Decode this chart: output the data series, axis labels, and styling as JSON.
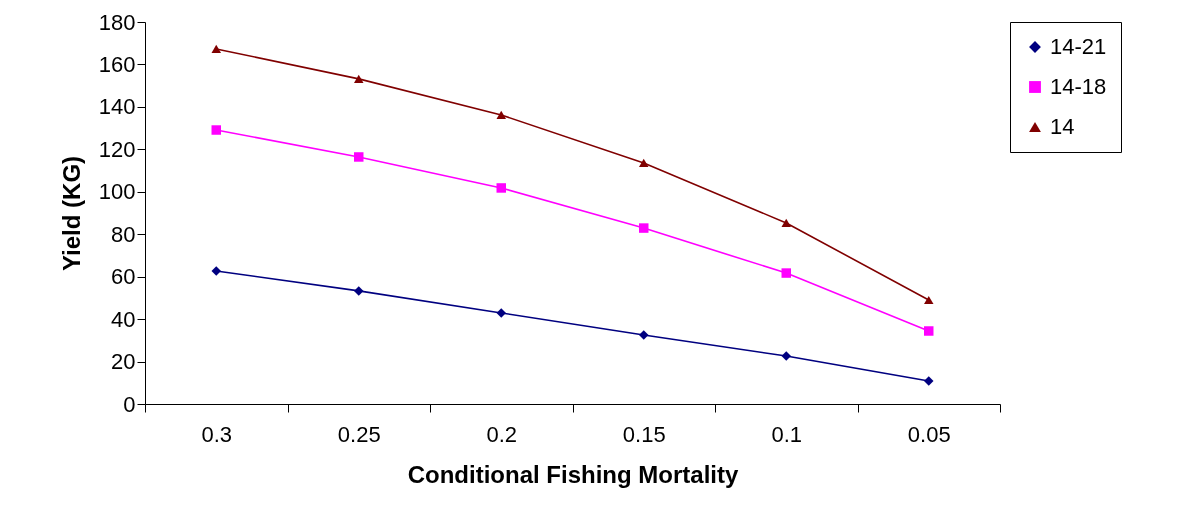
{
  "chart_data": {
    "type": "line",
    "xlabel": "Conditional Fishing Mortality",
    "ylabel": "Yield (KG)",
    "categories": [
      "0.3",
      "0.25",
      "0.2",
      "0.15",
      "0.1",
      "0.05"
    ],
    "ylim": [
      0,
      180
    ],
    "yticks": [
      0,
      20,
      40,
      60,
      80,
      100,
      120,
      140,
      160,
      180
    ],
    "grid": false,
    "legend": "right",
    "line_style": "solid",
    "series": [
      {
        "name": "14-21",
        "color": "#000080",
        "marker": "diamond",
        "values": [
          62.7,
          53.3,
          42.9,
          32.5,
          22.6,
          10.8
        ]
      },
      {
        "name": "14-18",
        "color": "#ff00ff",
        "marker": "square",
        "values": [
          129.1,
          116.4,
          101.8,
          82.9,
          61.7,
          34.4
        ]
      },
      {
        "name": "14",
        "color": "#800000",
        "marker": "triangle",
        "values": [
          167.3,
          153.2,
          136.2,
          113.6,
          85.3,
          49.0
        ]
      }
    ]
  }
}
